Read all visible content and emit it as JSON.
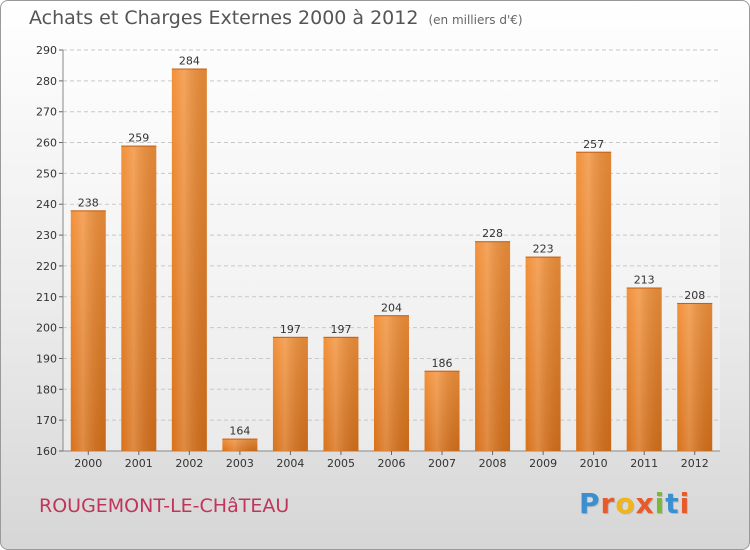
{
  "chart_data": {
    "type": "bar",
    "title": "Achats et Charges Externes 2000 à 2012",
    "subtitle": "(en milliers d'€)",
    "categories": [
      "2000",
      "2001",
      "2002",
      "2003",
      "2004",
      "2005",
      "2006",
      "2007",
      "2008",
      "2009",
      "2010",
      "2011",
      "2012"
    ],
    "values": [
      238,
      259,
      284,
      164,
      197,
      197,
      204,
      186,
      228,
      223,
      257,
      213,
      208
    ],
    "ylim": [
      160,
      290
    ],
    "yticks": [
      160,
      170,
      180,
      190,
      200,
      210,
      220,
      230,
      240,
      250,
      260,
      270,
      280,
      290
    ],
    "grid": true,
    "bar_color": "#f2913a",
    "bar_color_dark": "#d8711a"
  },
  "footer": {
    "city": "ROUGEMONT-LE-CHâTEAU",
    "logo_text": "Proxiti",
    "logo_colors": [
      "#3a8fd1",
      "#e85a2a",
      "#f0b41c",
      "#e85a2a",
      "#7ab83a",
      "#3a8fd1",
      "#e85a2a"
    ]
  }
}
